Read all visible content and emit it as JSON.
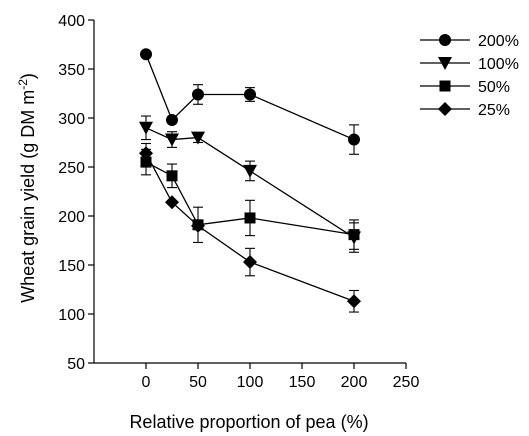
{
  "chart_data": {
    "type": "line",
    "title": "",
    "xlabel": "Relative proportion of pea (%)",
    "ylabel_main": "Wheat grain yield (g DM m",
    "ylabel_exp": "-2",
    "ylabel_tail": ")",
    "xlim": [
      -50,
      250
    ],
    "ylim": [
      50,
      400
    ],
    "xticks": [
      "0",
      "50",
      "100",
      "150",
      "200",
      "250"
    ],
    "xtick_values": [
      0,
      50,
      100,
      150,
      200,
      250
    ],
    "yticks": [
      "50",
      "100",
      "150",
      "200",
      "250",
      "300",
      "350",
      "400"
    ],
    "ytick_values": [
      50,
      100,
      150,
      200,
      250,
      300,
      350,
      400
    ],
    "grid": false,
    "legend_position": "top-right outside",
    "x": [
      0,
      25,
      50,
      100,
      200
    ],
    "series": [
      {
        "name": "200%",
        "marker": "circle",
        "values": [
          365,
          298,
          324,
          324,
          278
        ],
        "errors": [
          0,
          0,
          10,
          7,
          15
        ]
      },
      {
        "name": "100%",
        "marker": "triangle-down",
        "values": [
          290,
          278,
          280,
          246,
          178
        ],
        "errors": [
          12,
          8,
          5,
          10,
          15
        ]
      },
      {
        "name": "50%",
        "marker": "square",
        "values": [
          255,
          241,
          191,
          198,
          181
        ],
        "errors": [
          13,
          12,
          18,
          18,
          15
        ]
      },
      {
        "name": "25%",
        "marker": "diamond",
        "values": [
          264,
          214,
          190,
          153,
          113
        ],
        "errors": [
          10,
          0,
          0,
          14,
          11
        ]
      }
    ]
  }
}
